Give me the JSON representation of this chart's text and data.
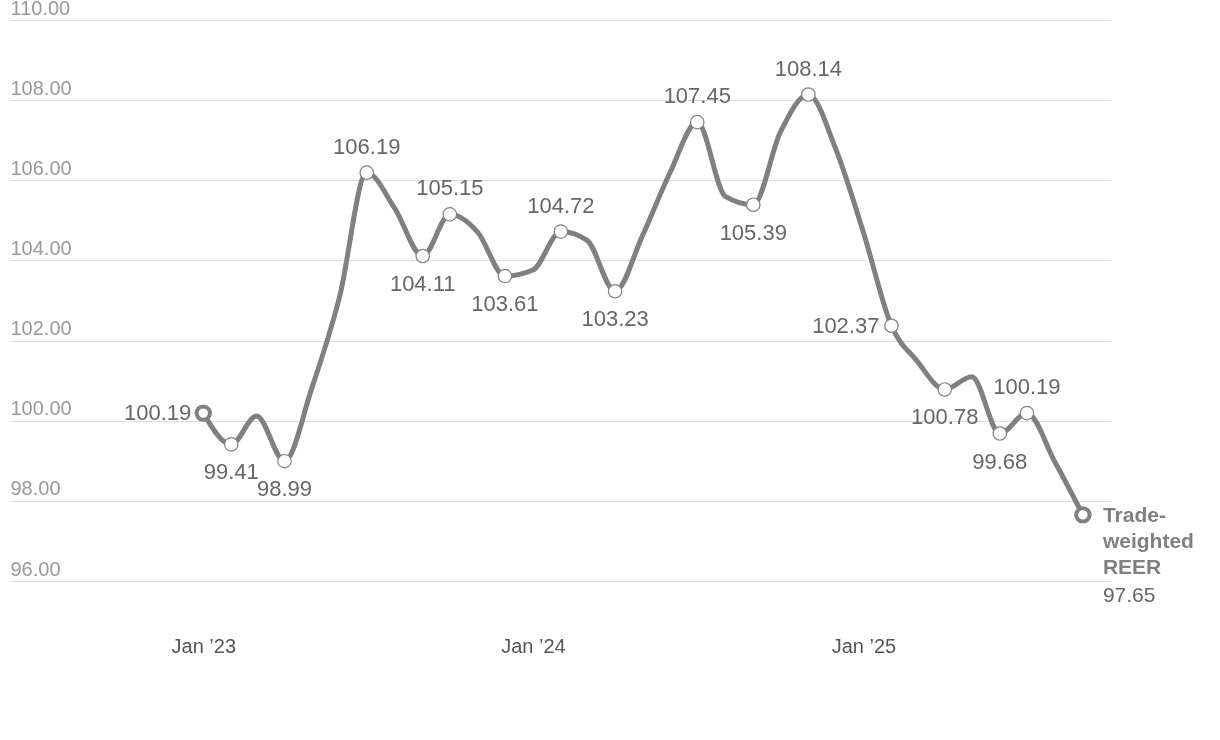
{
  "chart_data": {
    "type": "line",
    "x": [
      "2023-01",
      "2023-02",
      "2023-03",
      "2023-04",
      "2023-05",
      "2023-06",
      "2023-07",
      "2023-08",
      "2023-09",
      "2023-10",
      "2023-11",
      "2023-12",
      "2024-01",
      "2024-02",
      "2024-03",
      "2024-04",
      "2024-05",
      "2024-06",
      "2024-07",
      "2024-08",
      "2024-09",
      "2024-10",
      "2024-11",
      "2024-12",
      "2025-01",
      "2025-02",
      "2025-03",
      "2025-04",
      "2025-05",
      "2025-06",
      "2025-07",
      "2025-08",
      "2025-09"
    ],
    "series": [
      {
        "name": "Trade-weighted REER",
        "color": "#808080",
        "values": [
          100.19,
          99.41,
          100.12,
          98.99,
          100.8,
          103.1,
          106.19,
          105.3,
          104.11,
          105.15,
          104.7,
          103.61,
          103.76,
          104.72,
          104.5,
          103.23,
          104.6,
          106.2,
          107.45,
          105.6,
          105.39,
          107.2,
          108.14,
          106.8,
          104.7,
          102.37,
          101.5,
          100.78,
          101.1,
          99.68,
          100.19,
          98.97,
          97.65
        ],
        "value_labels": [
          "100.19",
          "99.41",
          null,
          "98.99",
          null,
          null,
          "106.19",
          null,
          "104.11",
          "105.15",
          null,
          "103.61",
          null,
          "104.72",
          null,
          "103.23",
          null,
          null,
          "107.45",
          null,
          "105.39",
          null,
          "108.14",
          null,
          null,
          "102.37",
          null,
          "100.78",
          null,
          "99.68",
          "100.19",
          null,
          "97.65"
        ]
      }
    ],
    "xlim": [
      "2022-06",
      "2025-10"
    ],
    "xticks": [
      {
        "value": "2023-01",
        "label": "Jan ’23"
      },
      {
        "value": "2024-01",
        "label": "Jan ’24"
      },
      {
        "value": "2025-01",
        "label": "Jan ’25"
      }
    ],
    "ylim": [
      96,
      110
    ],
    "yticks": [
      {
        "value": 96,
        "label": "96.00"
      },
      {
        "value": 98,
        "label": "98.00"
      },
      {
        "value": 100,
        "label": "100.00"
      },
      {
        "value": 102,
        "label": "102.00"
      },
      {
        "value": 104,
        "label": "104.00"
      },
      {
        "value": 106,
        "label": "106.00"
      },
      {
        "value": 108,
        "label": "108.00"
      },
      {
        "value": 110,
        "label": "110.00"
      }
    ],
    "grid": "y",
    "marker": "circle",
    "line_style": "solid"
  }
}
